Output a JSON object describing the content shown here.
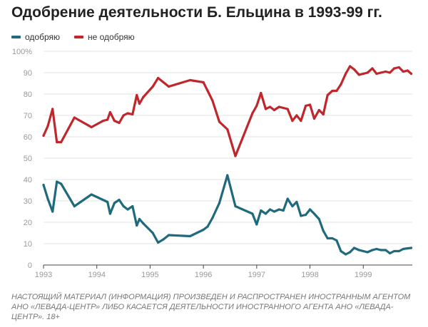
{
  "title": "Одобрение деятельности Б. Ельцина в 1993-99 гг.",
  "footnote": "НАСТОЯЩИЙ МАТЕРИАЛ (ИНФОРМАЦИЯ) ПРОИЗВЕДЕН И РАСПРОСТРАНЕН ИНОСТРАННЫМ АГЕНТОМ АНО «ЛЕВАДА-ЦЕНТР» ЛИБО КАСАЕТСЯ ДЕЯТЕЛЬНОСТИ ИНОСТРАННОГО АГЕНТА АНО «ЛЕВАДА-ЦЕНТР». 18+",
  "colors": {
    "approve": "#1f6a7c",
    "disapprove": "#c0272d",
    "grid": "#e3e3e3",
    "tick": "#999999",
    "axis": "#444444"
  },
  "chart_data": {
    "type": "line",
    "title": "Одобрение деятельности Б. Ельцина в 1993-99 гг.",
    "xlabel": "",
    "ylabel": "",
    "xlim": [
      1993,
      1999.92
    ],
    "ylim": [
      0,
      100
    ],
    "x_ticks": [
      1993,
      1994,
      1995,
      1996,
      1997,
      1998,
      1999
    ],
    "x_tick_labels": [
      "1993",
      "1994",
      "1995",
      "1996",
      "1997",
      "1998",
      "1999"
    ],
    "y_ticks": [
      0,
      10,
      20,
      30,
      40,
      50,
      60,
      70,
      80,
      90,
      100
    ],
    "y_tick_labels": [
      "0",
      "10",
      "20",
      "30",
      "40",
      "50",
      "60",
      "70",
      "80",
      "90",
      "100%"
    ],
    "grid": true,
    "legend_position": "top-left",
    "series": [
      {
        "name": "одобряю",
        "color_key": "approve",
        "x": [
          1993.0,
          1993.08,
          1993.17,
          1993.25,
          1993.33,
          1993.58,
          1993.9,
          1994.2,
          1994.25,
          1994.33,
          1994.42,
          1994.5,
          1994.58,
          1994.67,
          1994.75,
          1994.8,
          1994.87,
          1995.05,
          1995.15,
          1995.25,
          1995.35,
          1995.75,
          1996.0,
          1996.08,
          1996.17,
          1996.3,
          1996.45,
          1996.6,
          1996.92,
          1997.0,
          1997.08,
          1997.17,
          1997.25,
          1997.33,
          1997.42,
          1997.5,
          1997.58,
          1997.67,
          1997.75,
          1997.83,
          1997.92,
          1998.0,
          1998.08,
          1998.17,
          1998.25,
          1998.33,
          1998.42,
          1998.5,
          1998.58,
          1998.67,
          1998.75,
          1998.83,
          1998.92,
          1999.0,
          1999.08,
          1999.17,
          1999.25,
          1999.33,
          1999.42,
          1999.5,
          1999.58,
          1999.67,
          1999.75,
          1999.83,
          1999.9
        ],
        "values": [
          37.5,
          31,
          25,
          39,
          38,
          27.5,
          33,
          29.5,
          24,
          29,
          30.5,
          27.5,
          26,
          27.5,
          18.5,
          21.5,
          19.5,
          15,
          10.5,
          12,
          14,
          13.5,
          16.5,
          18,
          22,
          29,
          42,
          27.5,
          24,
          19,
          25.5,
          24,
          26,
          25,
          26,
          25.5,
          31,
          27.5,
          29.5,
          23,
          23.5,
          26,
          24,
          21.5,
          16,
          12.5,
          12.5,
          11.5,
          6.5,
          5,
          6,
          8,
          7,
          6.5,
          6,
          7,
          7.5,
          7,
          7,
          5.5,
          6.5,
          6.5,
          7.5,
          7.8,
          8
        ]
      },
      {
        "name": "не одобряю",
        "color_key": "disapprove",
        "x": [
          1993.0,
          1993.08,
          1993.17,
          1993.25,
          1993.33,
          1993.58,
          1993.9,
          1994.12,
          1994.2,
          1994.25,
          1994.33,
          1994.42,
          1994.5,
          1994.58,
          1994.67,
          1994.75,
          1994.8,
          1994.87,
          1995.05,
          1995.15,
          1995.25,
          1995.35,
          1995.75,
          1996.0,
          1996.08,
          1996.17,
          1996.3,
          1996.45,
          1996.6,
          1996.92,
          1997.0,
          1997.08,
          1997.17,
          1997.25,
          1997.33,
          1997.42,
          1997.5,
          1997.58,
          1997.67,
          1997.75,
          1997.83,
          1997.92,
          1998.0,
          1998.08,
          1998.17,
          1998.25,
          1998.33,
          1998.42,
          1998.5,
          1998.58,
          1998.67,
          1998.75,
          1998.83,
          1998.92,
          1999.0,
          1999.08,
          1999.17,
          1999.25,
          1999.33,
          1999.42,
          1999.5,
          1999.58,
          1999.67,
          1999.75,
          1999.83,
          1999.9
        ],
        "values": [
          60.5,
          65,
          73,
          57.5,
          57.5,
          69,
          64.5,
          67.5,
          68,
          71.5,
          67.5,
          66.5,
          70,
          71,
          70.5,
          79.5,
          75.5,
          78.5,
          83.5,
          87.5,
          85.5,
          83.5,
          86.5,
          85.5,
          81.5,
          77,
          67,
          63.5,
          51,
          71,
          74.5,
          80.5,
          73,
          74,
          72.5,
          74,
          73.5,
          73,
          67.5,
          70,
          67.5,
          74.5,
          75,
          68.5,
          72.5,
          70.5,
          79.5,
          81.5,
          81.5,
          84.5,
          89.5,
          93,
          91.5,
          89,
          89.5,
          90,
          92,
          89.5,
          90,
          90.5,
          90,
          92,
          92.5,
          90.5,
          91,
          89.5
        ]
      }
    ]
  }
}
